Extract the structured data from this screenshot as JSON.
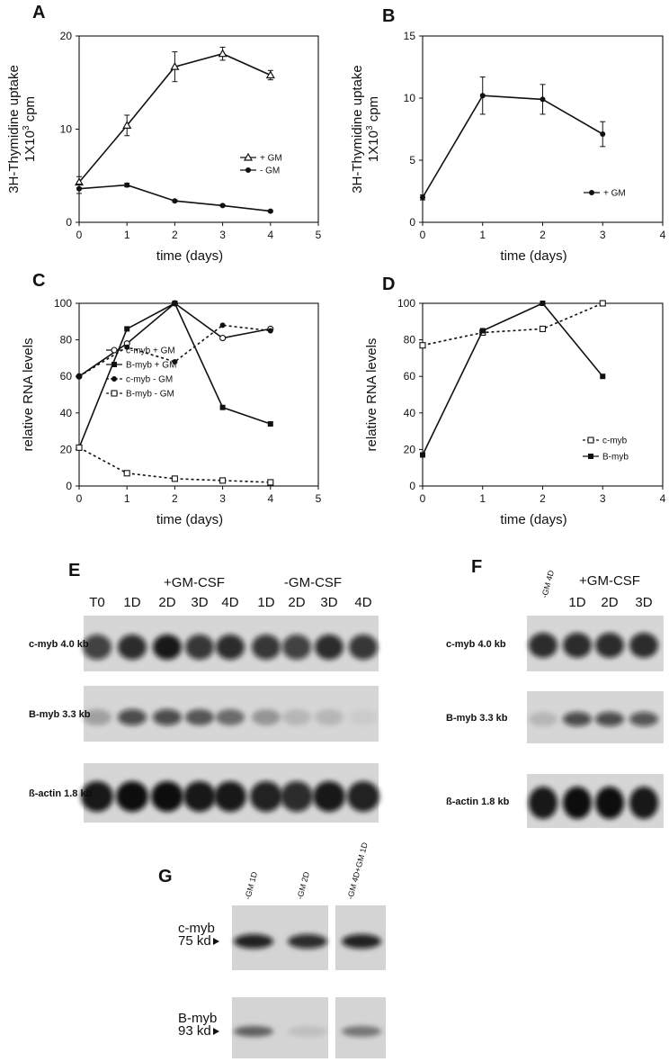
{
  "panel_labels": {
    "A": "A",
    "B": "B",
    "C": "C",
    "D": "D",
    "E": "E",
    "F": "F",
    "G": "G"
  },
  "chart_data": [
    {
      "id": "A",
      "type": "line",
      "ylabel_line1": "3H-Thymidine uptake",
      "ylabel_line2": "1X10",
      "ylabel_sup": "3",
      "ylabel_tail": " cpm",
      "xlabel": "time (days)",
      "xlim": [
        0,
        5
      ],
      "ylim": [
        0,
        20
      ],
      "xticks": [
        "0",
        "1",
        "2",
        "3",
        "4",
        "5"
      ],
      "yticks": [
        "0",
        "10",
        "20"
      ],
      "series": [
        {
          "name": "+ GM",
          "marker": "triangle",
          "x": [
            0,
            1,
            2,
            3,
            4
          ],
          "y": [
            4.3,
            10.4,
            16.7,
            18.1,
            15.8
          ],
          "err": [
            0.6,
            1.1,
            1.6,
            0.7,
            0.5
          ]
        },
        {
          "name": "- GM",
          "marker": "dot",
          "x": [
            0,
            1,
            2,
            3,
            4
          ],
          "y": [
            3.6,
            4.0,
            2.3,
            1.8,
            1.2
          ],
          "err": [
            0.5,
            0.2,
            0.1,
            0.1,
            0.1
          ]
        }
      ]
    },
    {
      "id": "B",
      "type": "line",
      "ylabel_line1": "3H-Thymidine uptake",
      "ylabel_line2": "1X10",
      "ylabel_sup": "3",
      "ylabel_tail": " cpm",
      "xlabel": "time (days)",
      "xlim": [
        0,
        4
      ],
      "ylim": [
        0,
        15
      ],
      "xticks": [
        "0",
        "1",
        "2",
        "3",
        "4"
      ],
      "yticks": [
        "0",
        "5",
        "10",
        "15"
      ],
      "series": [
        {
          "name": "+ GM",
          "marker": "dot",
          "x": [
            0,
            1,
            2,
            3
          ],
          "y": [
            2.0,
            10.2,
            9.9,
            7.1
          ],
          "err": [
            0.2,
            1.5,
            1.2,
            1.0
          ]
        }
      ]
    },
    {
      "id": "C",
      "type": "line",
      "ylabel": "relative RNA levels",
      "xlabel": "time (days)",
      "xlim": [
        0,
        5
      ],
      "ylim": [
        0,
        100
      ],
      "xticks": [
        "0",
        "1",
        "2",
        "3",
        "4",
        "5"
      ],
      "yticks": [
        "0",
        "20",
        "40",
        "60",
        "80",
        "100"
      ],
      "series": [
        {
          "name": "c-myb + GM",
          "marker": "open-circle",
          "dash": false,
          "x": [
            0,
            1,
            2,
            3,
            4
          ],
          "y": [
            60,
            78,
            100,
            81,
            86
          ]
        },
        {
          "name": "B-myb + GM",
          "marker": "square",
          "dash": false,
          "x": [
            0,
            1,
            2,
            3,
            4
          ],
          "y": [
            21,
            86,
            100,
            43,
            34
          ]
        },
        {
          "name": "c-myb - GM",
          "marker": "dot",
          "dash": true,
          "x": [
            0,
            1,
            2,
            3,
            4
          ],
          "y": [
            60,
            76,
            68,
            88,
            85
          ]
        },
        {
          "name": "B-myb - GM",
          "marker": "open-square",
          "dash": true,
          "x": [
            0,
            1,
            2,
            3,
            4
          ],
          "y": [
            21,
            7,
            4,
            3,
            2
          ]
        }
      ]
    },
    {
      "id": "D",
      "type": "line",
      "ylabel": "relative RNA levels",
      "xlabel": "time (days)",
      "xlim": [
        0,
        4
      ],
      "ylim": [
        0,
        100
      ],
      "xticks": [
        "0",
        "1",
        "2",
        "3",
        "4"
      ],
      "yticks": [
        "0",
        "20",
        "40",
        "60",
        "80",
        "100"
      ],
      "series": [
        {
          "name": "c-myb",
          "marker": "open-square",
          "dash": true,
          "x": [
            0,
            1,
            2,
            3
          ],
          "y": [
            77,
            84,
            86,
            100
          ]
        },
        {
          "name": "B-myb",
          "marker": "square",
          "dash": false,
          "x": [
            0,
            1,
            2,
            3
          ],
          "y": [
            17,
            85,
            100,
            60
          ]
        }
      ]
    }
  ],
  "blots": {
    "E": {
      "header_plus": "+GM-CSF",
      "header_minus": "-GM-CSF",
      "lanes": [
        "T0",
        "1D",
        "2D",
        "3D",
        "4D",
        "1D",
        "2D",
        "3D",
        "4D"
      ],
      "rows": [
        {
          "label": "c-myb 4.0 kb",
          "intensity": [
            0.75,
            0.85,
            0.95,
            0.8,
            0.85,
            0.8,
            0.75,
            0.85,
            0.8
          ]
        },
        {
          "label": "B-myb 3.3 kb",
          "intensity": [
            0.25,
            0.7,
            0.7,
            0.6,
            0.5,
            0.3,
            0.15,
            0.15,
            0.05
          ]
        },
        {
          "label": "ß-actin 1.8 kb",
          "intensity": [
            0.95,
            1.0,
            1.0,
            0.95,
            0.95,
            0.9,
            0.85,
            0.95,
            0.9
          ]
        }
      ]
    },
    "F": {
      "lane0": "-GM 4D",
      "header_plus": "+GM-CSF",
      "lanes": [
        "1D",
        "2D",
        "3D"
      ],
      "rows": [
        {
          "label": "c-myb 4.0 kb",
          "intensity": [
            0.85,
            0.85,
            0.85,
            0.85
          ]
        },
        {
          "label": "B-myb 3.3 kb",
          "intensity": [
            0.15,
            0.7,
            0.7,
            0.65
          ]
        },
        {
          "label": "ß-actin 1.8 kb",
          "intensity": [
            0.95,
            1.0,
            1.0,
            0.95
          ]
        }
      ]
    },
    "G": {
      "lanes": [
        "-GM 1D",
        "-GM 2D",
        "-GM 4D+GM 1D"
      ],
      "rows": [
        {
          "label1": "c-myb",
          "label2": "75 kd",
          "intensity": [
            0.9,
            0.85,
            0.9
          ]
        },
        {
          "label1": "B-myb",
          "label2": "93 kd",
          "intensity": [
            0.55,
            0.1,
            0.45
          ]
        }
      ]
    }
  },
  "icons": {
    "arrow": "triangle-right-icon"
  }
}
